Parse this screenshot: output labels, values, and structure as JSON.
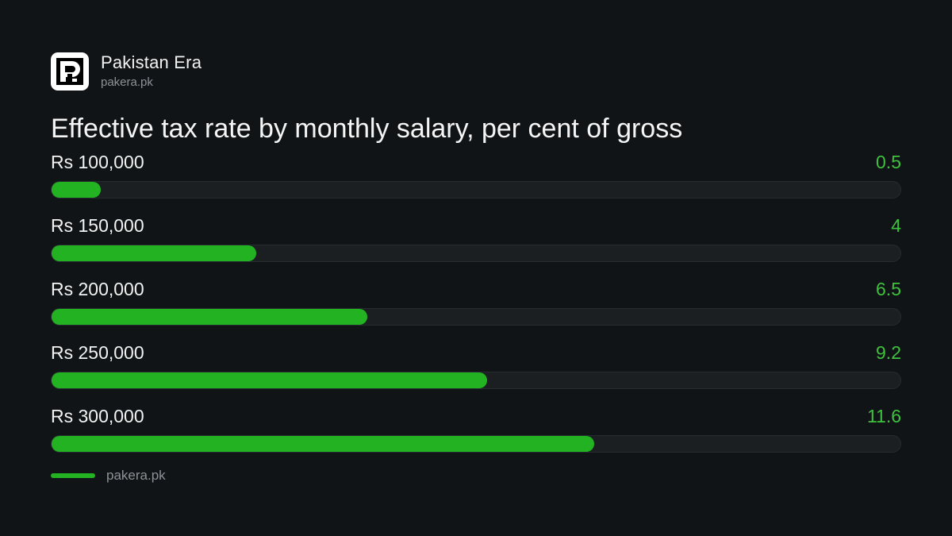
{
  "brand": {
    "name": "Pakistan Era",
    "url": "pakera.pk",
    "logo_icon": "pakistan-era-logo-icon"
  },
  "colors": {
    "background": "#111416",
    "bar_fill": "#22b222",
    "bar_track": "#1b1f22",
    "value_text": "#3fc13f"
  },
  "chart_data": {
    "type": "bar",
    "orientation": "horizontal",
    "title": "Effective  tax rate by monthly salary, per cent of gross",
    "categories": [
      "Rs 100,000",
      "Rs 150,000",
      "Rs 200,000",
      "Rs 250,000",
      "Rs 300,000"
    ],
    "values": [
      0.5,
      4,
      6.5,
      9.2,
      11.6
    ],
    "value_labels": [
      "0.5",
      "4",
      "6.5",
      "9.2",
      "11.6"
    ],
    "xlim": [
      -0.6,
      18.5
    ],
    "grid": false
  },
  "footer": {
    "source": "pakera.pk"
  }
}
